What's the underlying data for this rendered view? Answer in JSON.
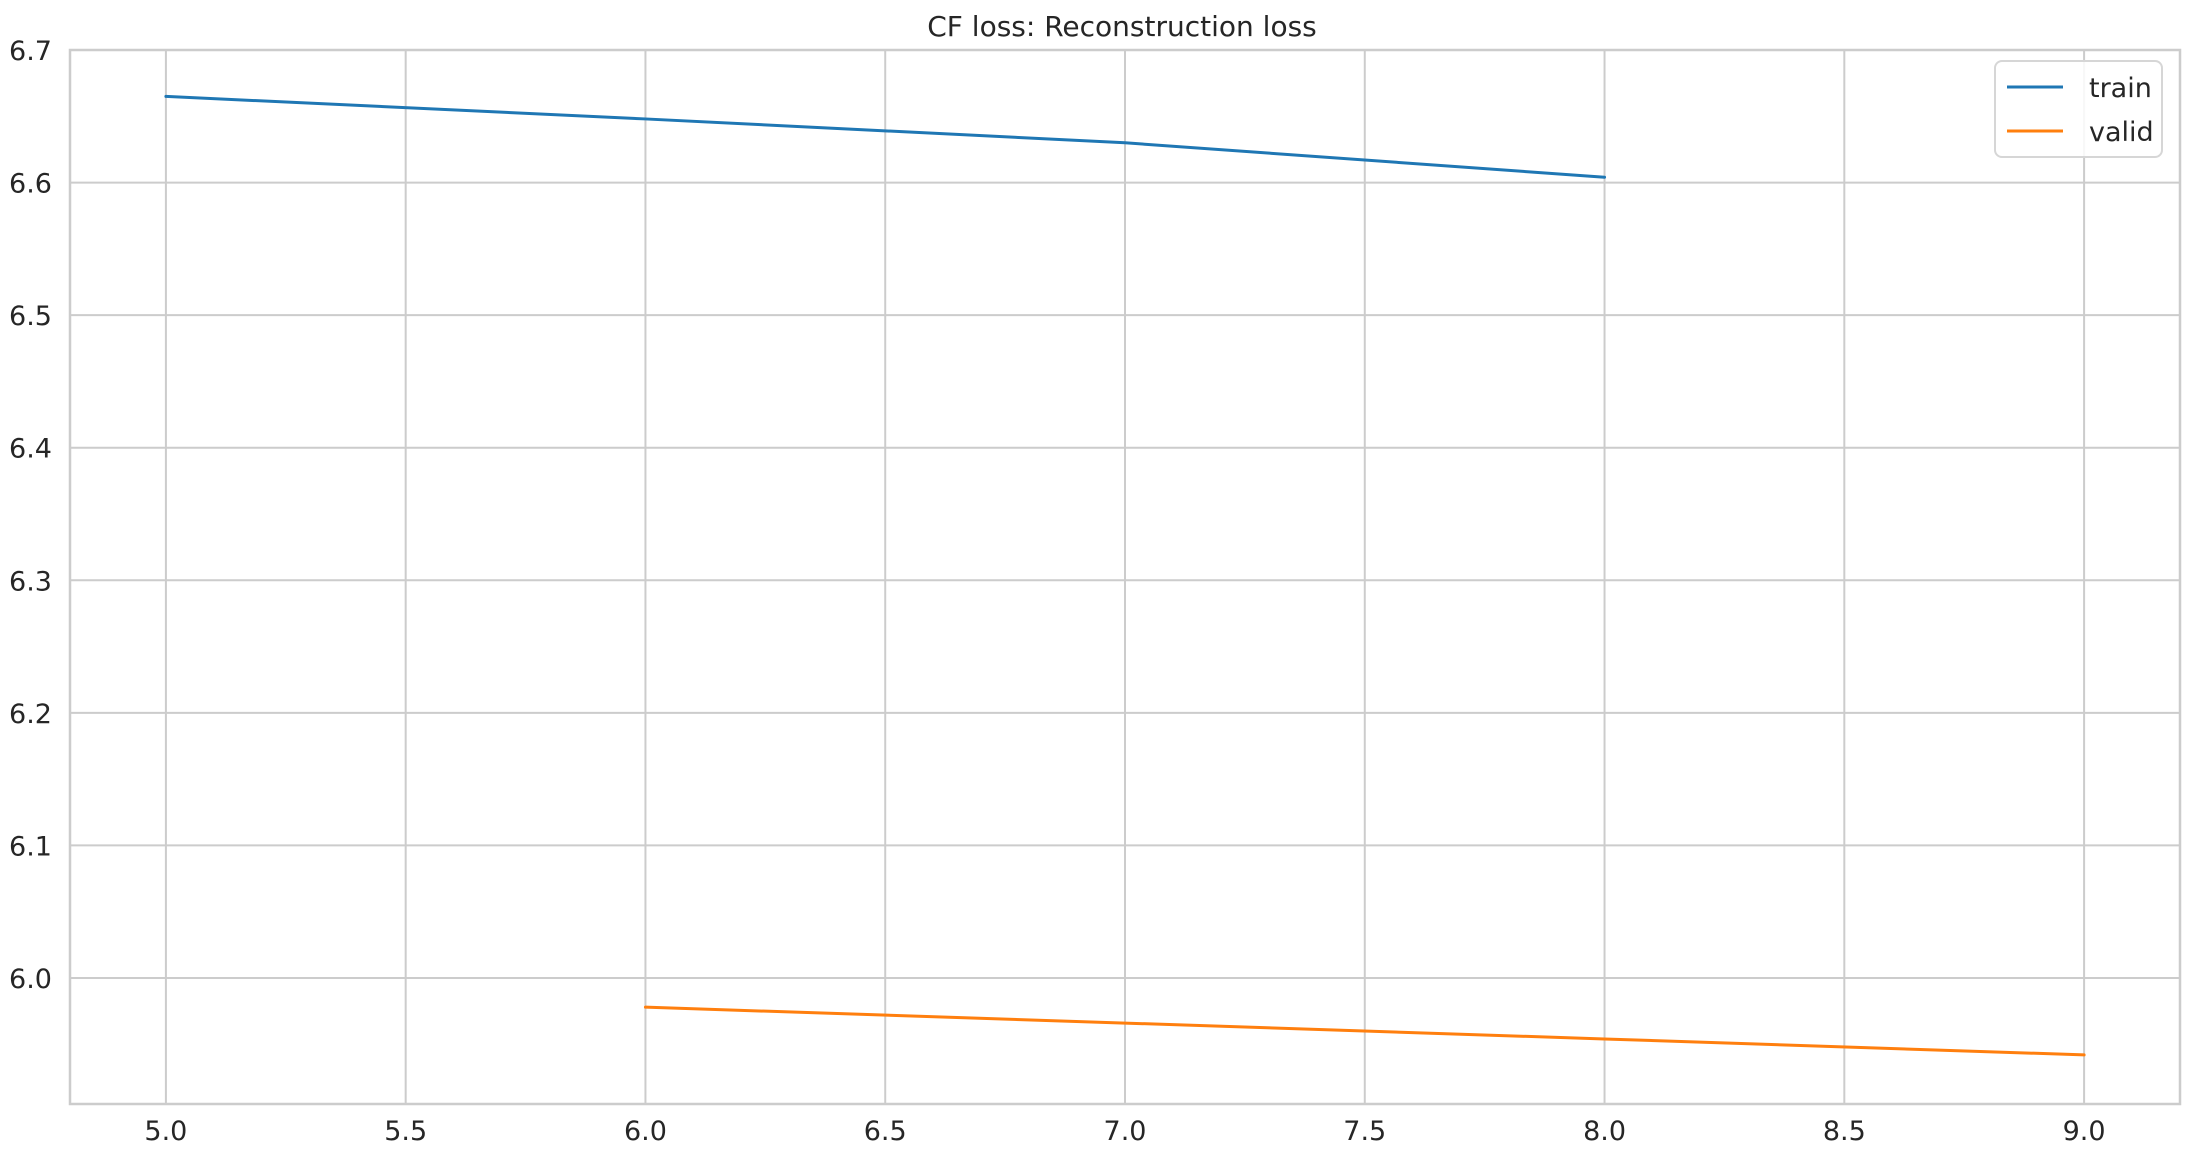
{
  "chart_data": {
    "type": "line",
    "title": "CF loss: Reconstruction loss",
    "xlabel": "",
    "ylabel": "",
    "xlim": [
      4.8,
      9.2
    ],
    "ylim": [
      5.9,
      6.7
    ],
    "x_ticks": [
      "5.0",
      "5.5",
      "6.0",
      "6.5",
      "7.0",
      "7.5",
      "8.0",
      "8.5",
      "9.0"
    ],
    "y_ticks": [
      "6.0",
      "6.1",
      "6.2",
      "6.3",
      "6.4",
      "6.5",
      "6.6",
      "6.7"
    ],
    "grid": true,
    "legend_position": "top-right",
    "series": [
      {
        "name": "train",
        "color": "#1f77b4",
        "x": [
          5,
          6,
          7,
          8
        ],
        "y": [
          6.665,
          6.648,
          6.63,
          6.604
        ]
      },
      {
        "name": "valid",
        "color": "#ff7f0e",
        "x": [
          6,
          7,
          8,
          9
        ],
        "y": [
          5.978,
          5.966,
          5.954,
          5.942
        ]
      }
    ]
  }
}
